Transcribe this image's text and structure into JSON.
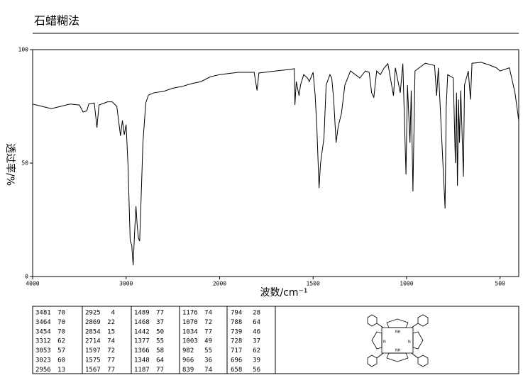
{
  "chart_data": {
    "type": "line",
    "title": "石蜡糊法",
    "xlabel": "波数/cm⁻¹",
    "ylabel": "透过率/%",
    "xlim": [
      4000,
      400
    ],
    "x_scale_break": 2000,
    "xticks": [
      4000,
      3000,
      2000,
      1500,
      1000,
      500
    ],
    "ylim": [
      0,
      100
    ],
    "yticks": [
      0,
      50,
      100
    ],
    "series": [
      {
        "color": "#000000",
        "x": [
          4000,
          3900,
          3800,
          3750,
          3600,
          3500,
          3460,
          3420,
          3400,
          3340,
          3312,
          3290,
          3200,
          3150,
          3100,
          3060,
          3040,
          3020,
          3000,
          2980,
          2956,
          2940,
          2925,
          2910,
          2895,
          2880,
          2869,
          2855,
          2840,
          2820,
          2790,
          2760,
          2700,
          2600,
          2500,
          2400,
          2300,
          2200,
          2100,
          2000,
          1900,
          1815,
          1800,
          1790,
          1700,
          1620,
          1600,
          1597,
          1590,
          1575,
          1567,
          1550,
          1530,
          1520,
          1500,
          1489,
          1480,
          1468,
          1460,
          1442,
          1430,
          1410,
          1400,
          1390,
          1377,
          1366,
          1348,
          1330,
          1300,
          1250,
          1220,
          1200,
          1187,
          1175,
          1160,
          1140,
          1120,
          1100,
          1070,
          1060,
          1034,
          1020,
          1003,
          995,
          982,
          975,
          966,
          955,
          900,
          850,
          839,
          830,
          794,
          788,
          780,
          750,
          739,
          733,
          728,
          722,
          717,
          710,
          696,
          690,
          670,
          658,
          650,
          600,
          550,
          520,
          500,
          450,
          420,
          400
        ],
        "values": [
          76,
          75,
          74,
          74.5,
          76,
          75.6,
          72.5,
          73,
          76,
          76.5,
          65.6,
          75.6,
          77,
          77,
          75,
          62,
          68.8,
          62.5,
          67,
          49,
          15.6,
          14,
          5,
          18.8,
          31,
          21.9,
          17,
          15.6,
          34,
          59,
          76.5,
          80,
          81,
          81.6,
          83,
          83.8,
          85,
          85.9,
          88,
          89,
          90,
          90,
          82,
          89.7,
          90.6,
          91.3,
          91.6,
          75.6,
          85.9,
          79.7,
          84.4,
          89,
          87.5,
          85.9,
          90,
          80,
          65.6,
          39,
          50,
          61,
          84.4,
          89,
          87.5,
          78,
          59,
          66,
          72,
          84.4,
          90.6,
          87.5,
          90.6,
          90,
          81,
          79,
          90.6,
          89,
          91.9,
          93.8,
          79.7,
          92,
          81,
          93.8,
          45,
          84.4,
          59,
          82,
          37.5,
          90.6,
          94,
          93,
          79.7,
          92,
          30,
          75,
          89,
          87.5,
          50,
          81,
          40,
          78,
          59,
          82,
          44,
          84.4,
          90.6,
          78,
          94,
          94.4,
          93,
          92,
          90.6,
          92,
          81,
          68.8
        ]
      }
    ],
    "peak_table": {
      "wavenumbers": [
        "3481",
        "3464",
        "3454",
        "3312",
        "3053",
        "3023",
        "2956",
        "2925",
        "2869",
        "2854",
        "2714",
        "1597",
        "1575",
        "1567",
        "1489",
        "1468",
        "1442",
        "1377",
        "1366",
        "1348",
        "1187",
        "1176",
        "1070",
        "1034",
        "1003",
        "982",
        "966",
        "839",
        "794",
        "788",
        "739",
        "728",
        "717",
        "696",
        "658"
      ],
      "transmittance": [
        "70",
        "70",
        "70",
        "62",
        "57",
        "60",
        "13",
        "4",
        "22",
        "15",
        "74",
        "72",
        "77",
        "77",
        "77",
        "37",
        "50",
        "55",
        "58",
        "64",
        "77",
        "74",
        "72",
        "77",
        "49",
        "55",
        "36",
        "74",
        "28",
        "64",
        "46",
        "37",
        "62",
        "39",
        "56"
      ]
    },
    "structure_labels": [
      "NH",
      "N",
      "N",
      "NH"
    ]
  }
}
